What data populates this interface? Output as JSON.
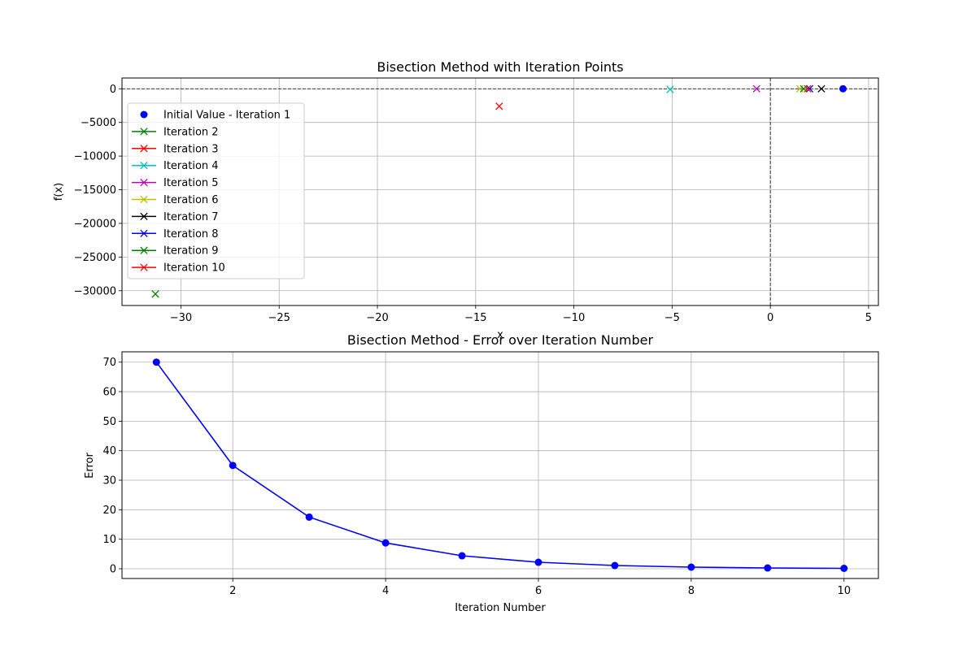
{
  "chart_data": [
    {
      "type": "scatter",
      "title": "Bisection Method with Iteration Points",
      "xlabel": "x",
      "ylabel": "f(x)",
      "xlim": [
        -33,
        5.5
      ],
      "ylim": [
        -32200,
        1600
      ],
      "xticks": [
        -30,
        -25,
        -20,
        -15,
        -10,
        -5,
        0,
        5
      ],
      "xtick_labels": [
        "−30",
        "−25",
        "−20",
        "−15",
        "−10",
        "−5",
        "0",
        "5"
      ],
      "yticks": [
        0,
        -5000,
        -10000,
        -15000,
        -20000,
        -25000,
        -30000
      ],
      "ytick_labels": [
        "0",
        "−5000",
        "−10000",
        "−15000",
        "−20000",
        "−25000",
        "−30000"
      ],
      "grid": true,
      "reference_lines": {
        "y": 0,
        "x": 0,
        "style": "dashed"
      },
      "legend_position": "upper-left",
      "series": [
        {
          "name": "Initial Value - Iteration 1",
          "marker": "circle",
          "color": "#0000ff",
          "x": 3.7,
          "y": 0
        },
        {
          "name": "Iteration 2",
          "marker": "x",
          "color": "#008000",
          "x": -31.3,
          "y": -30500
        },
        {
          "name": "Iteration 3",
          "marker": "x",
          "color": "#ff0000",
          "x": -13.8,
          "y": -2600
        },
        {
          "name": "Iteration 4",
          "marker": "x",
          "color": "#00bfbf",
          "x": -5.1,
          "y": -100
        },
        {
          "name": "Iteration 5",
          "marker": "x",
          "color": "#bf00bf",
          "x": -0.7,
          "y": 0
        },
        {
          "name": "Iteration 6",
          "marker": "x",
          "color": "#bfbf00",
          "x": 1.5,
          "y": 0
        },
        {
          "name": "Iteration 7",
          "marker": "x",
          "color": "#000000",
          "x": 2.6,
          "y": 0
        },
        {
          "name": "Iteration 8",
          "marker": "x",
          "color": "#0000ff",
          "x": 2.0,
          "y": 0
        },
        {
          "name": "Iteration 9",
          "marker": "x",
          "color": "#008000",
          "x": 1.7,
          "y": 0
        },
        {
          "name": "Iteration 10",
          "marker": "x",
          "color": "#ff0000",
          "x": 1.9,
          "y": 0
        }
      ]
    },
    {
      "type": "line",
      "title": "Bisection Method - Error over Iteration Number",
      "xlabel": "Iteration Number",
      "ylabel": "Error",
      "xlim": [
        0.55,
        10.45
      ],
      "ylim": [
        -3.3,
        73.5
      ],
      "xticks": [
        2,
        4,
        6,
        8,
        10
      ],
      "xtick_labels": [
        "2",
        "4",
        "6",
        "8",
        "10"
      ],
      "yticks": [
        0,
        10,
        20,
        30,
        40,
        50,
        60,
        70
      ],
      "ytick_labels": [
        "0",
        "10",
        "20",
        "30",
        "40",
        "50",
        "60",
        "70"
      ],
      "grid": true,
      "color": "#0000ff",
      "x": [
        1,
        2,
        3,
        4,
        5,
        6,
        7,
        8,
        9,
        10
      ],
      "y": [
        70,
        35,
        17.5,
        8.75,
        4.4,
        2.2,
        1.1,
        0.55,
        0.27,
        0.14
      ]
    }
  ]
}
